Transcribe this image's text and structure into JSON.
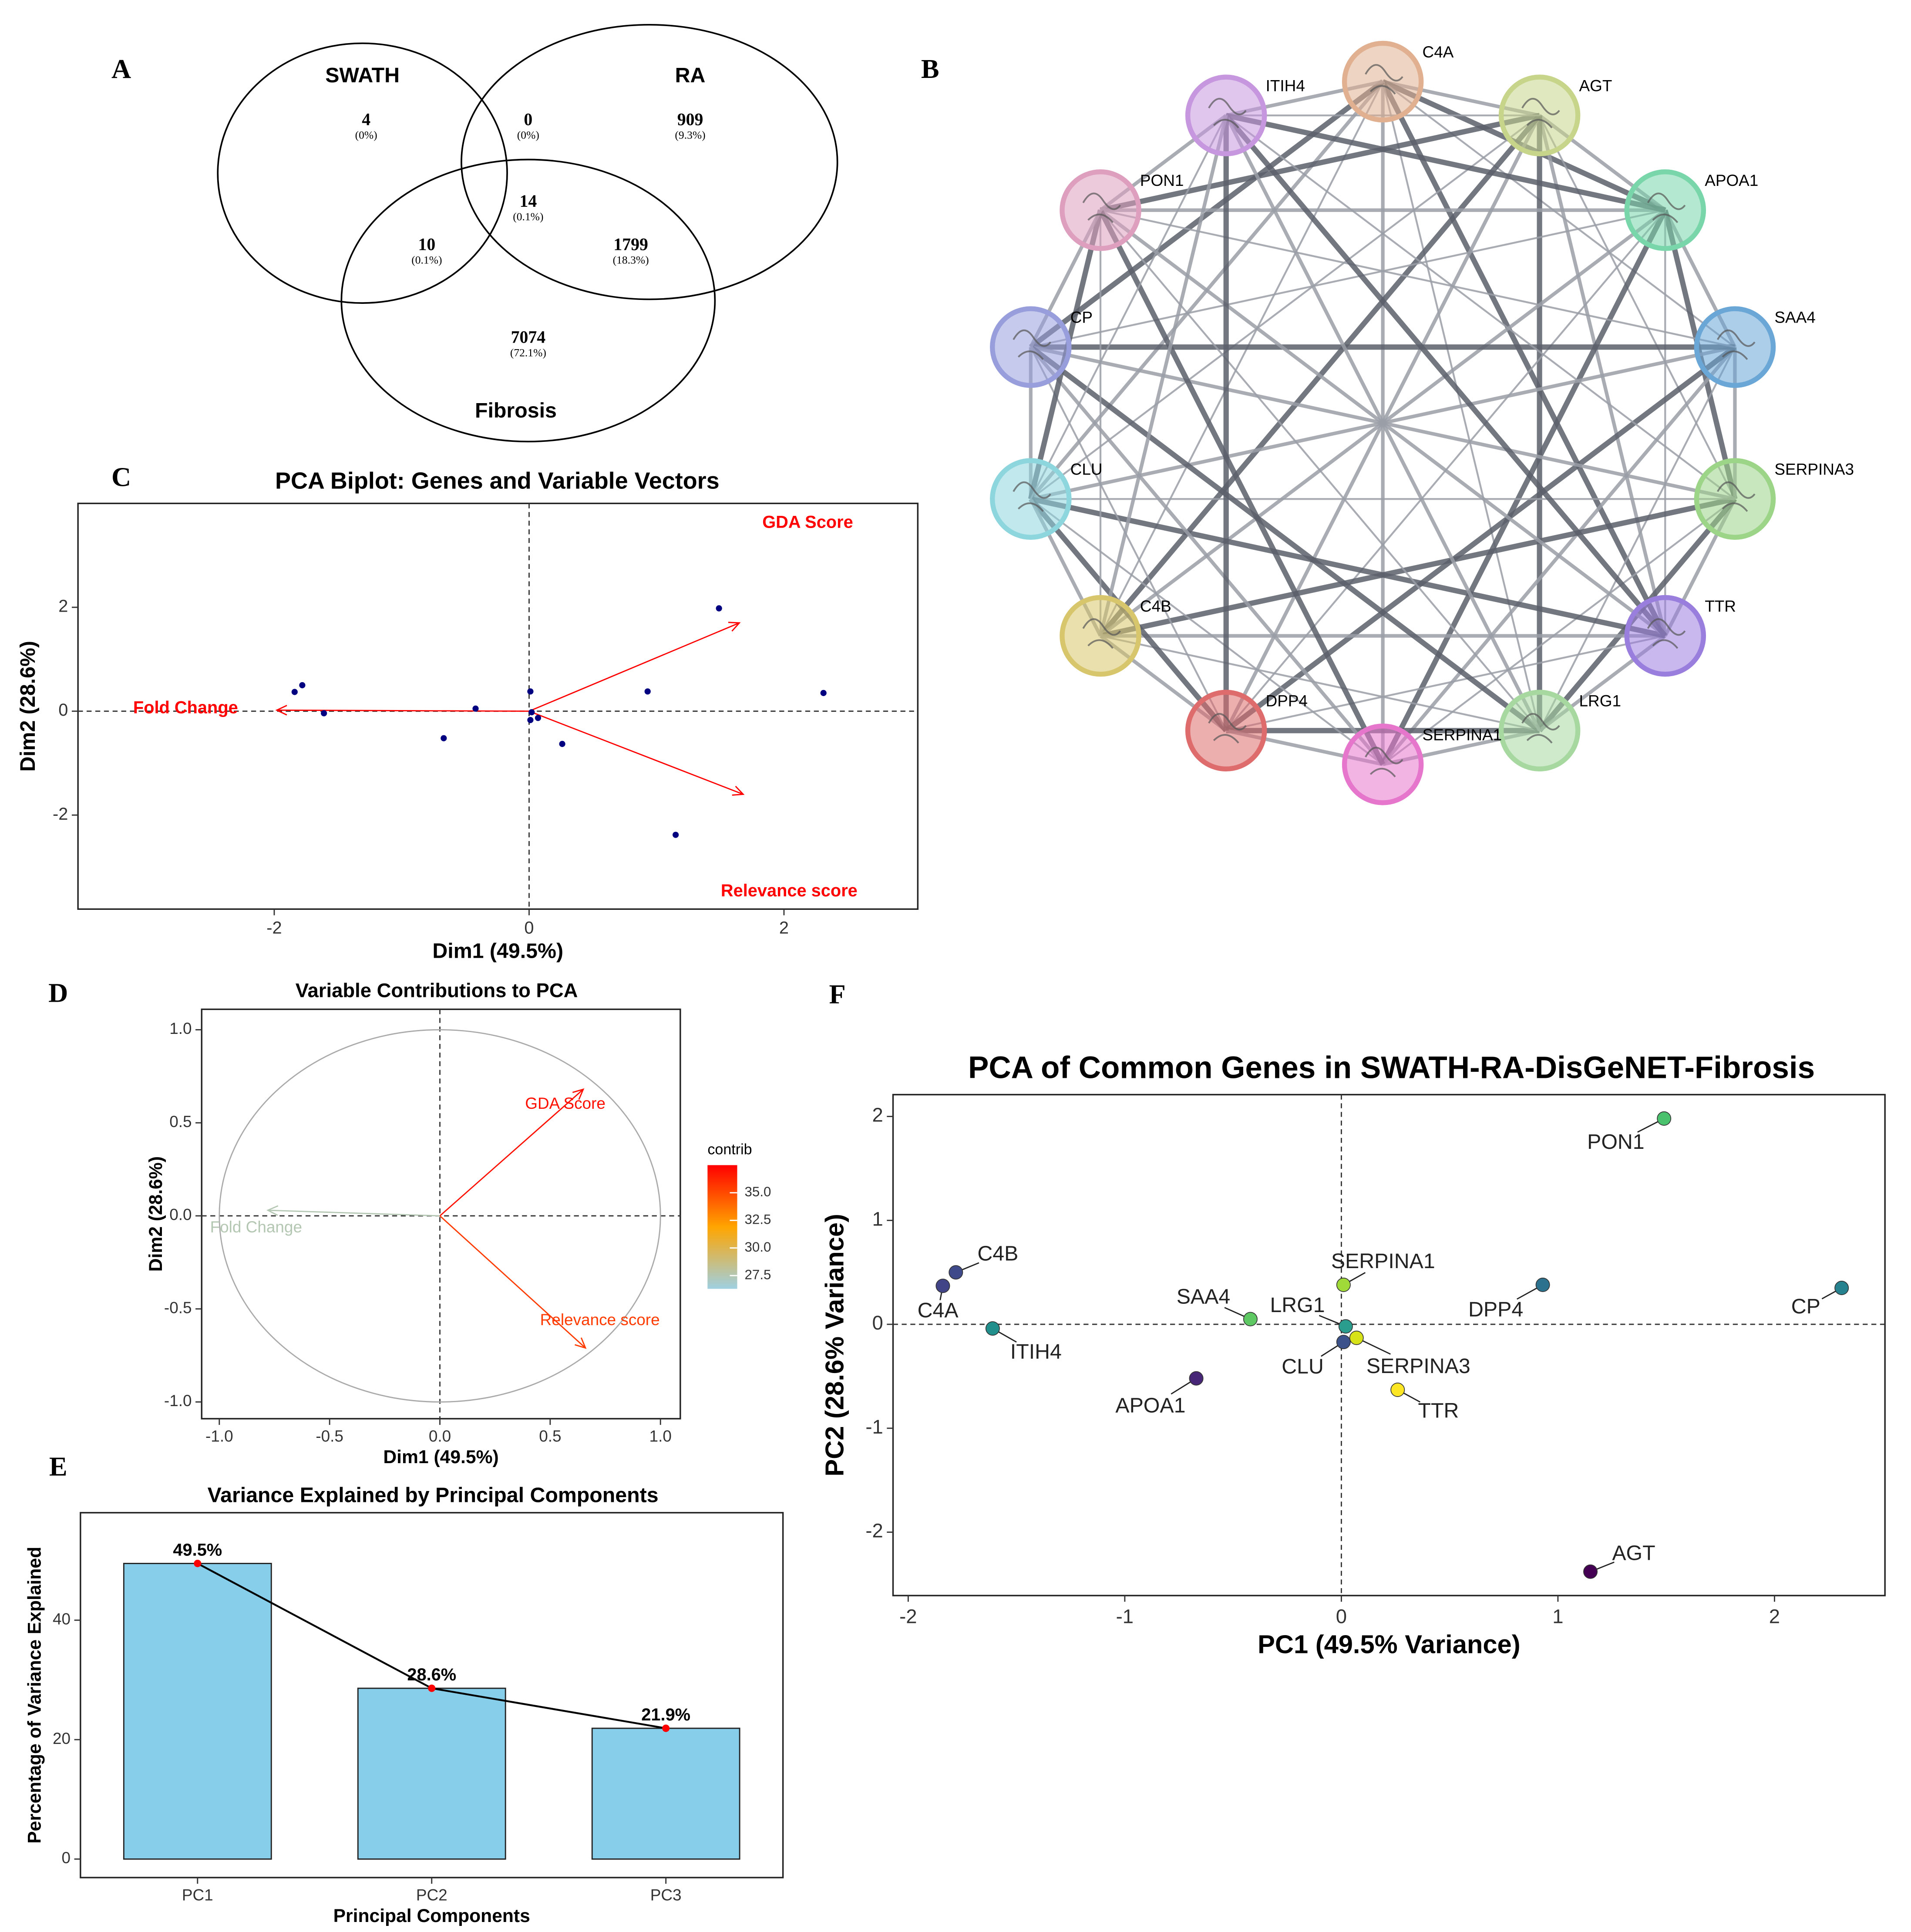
{
  "chart_data": [
    {
      "type": "venn",
      "label": "A",
      "sets": [
        "SWATH",
        "RA",
        "Fibrosis"
      ],
      "values": [
        4,
        0,
        909,
        10,
        14,
        1799,
        7074
      ],
      "percents": [
        0,
        0,
        9.3,
        0.1,
        0.1,
        18.3,
        72.1
      ],
      "percent_labels": [
        "(0%)",
        "(0%)",
        "(9.3%)",
        "(0.1%)",
        "(0.1%)",
        "(18.3%)",
        "(72.1%)"
      ]
    },
    {
      "type": "network",
      "label": "B",
      "nodes": [
        "C4A",
        "AGT",
        "APOA1",
        "SAA4",
        "SERPINA3",
        "TTR",
        "LRG1",
        "SERPINA1",
        "DPP4",
        "C4B",
        "CLU",
        "CP",
        "PON1",
        "ITIH4"
      ],
      "colors": [
        "#e0b090",
        "#c6d58a",
        "#78d6aa",
        "#6aa6d6",
        "#9cd488",
        "#9a7ede",
        "#a6d8a0",
        "#e676cc",
        "#de6c6c",
        "#d8c66c",
        "#8ed6de",
        "#989edc",
        "#de9ebe",
        "#c696de"
      ]
    },
    {
      "type": "scatter",
      "label": "C",
      "title": "PCA Biplot: Genes and Variable Vectors",
      "xlabel": "Dim1 (49.5%)",
      "ylabel": "Dim2 (28.6%)",
      "x": [
        1.49,
        -1.78,
        -1.84,
        -1.61,
        -0.42,
        -0.67,
        0.01,
        0.02,
        0.01,
        0.07,
        0.26,
        0.93,
        2.31,
        1.15
      ],
      "y": [
        1.98,
        0.5,
        0.37,
        -0.04,
        0.05,
        -0.52,
        0.38,
        -0.02,
        -0.17,
        -0.13,
        -0.63,
        0.38,
        0.35,
        -2.38
      ],
      "point_color": "#000080",
      "vectors": [
        {
          "name": "GDA Score",
          "x": 1.65,
          "y": 1.7
        },
        {
          "name": "Fold Change",
          "x": -1.98,
          "y": 0.02
        },
        {
          "name": "Relevance score",
          "x": 1.68,
          "y": -1.6
        }
      ],
      "vector_color": "#ff0000",
      "xlim": [
        -3.54,
        3.05
      ],
      "ylim": [
        -3.81,
        4.0
      ],
      "xticks": [
        -2,
        0,
        2
      ],
      "yticks": [
        -2,
        0,
        2
      ],
      "zero_lines": true
    },
    {
      "type": "circle",
      "label": "D",
      "title": "Variable Contributions to PCA",
      "xlabel": "Dim1 (49.5%)",
      "ylabel": "Dim2 (28.6%)",
      "vectors": [
        {
          "name": "GDA Score",
          "x": 0.65,
          "y": 0.68,
          "contrib": 37
        },
        {
          "name": "Fold Change",
          "x": -0.78,
          "y": 0.03,
          "contrib": 27.5
        },
        {
          "name": "Relevance score",
          "x": 0.66,
          "y": -0.71,
          "contrib": 35.5
        }
      ],
      "colorbar": {
        "title": "contrib",
        "clim": [
          26.3,
          37.5
        ],
        "colors": [
          "#9fd0e2",
          "#ffa500",
          "#ff0000"
        ],
        "ticks": [
          27.5,
          {
            "value": 30,
            "label": "30.0"
          },
          32.5,
          {
            "value": 35,
            "label": "35.0"
          }
        ]
      },
      "xlim": [
        -1.08,
        1.09
      ],
      "ylim": [
        -1.09,
        1.11
      ],
      "xticks": [
        {
          "value": -1,
          "label": "-1.0"
        },
        -0.5,
        {
          "value": 0,
          "label": "0.0"
        },
        0.5,
        {
          "value": 1,
          "label": "1.0"
        }
      ],
      "yticks": [
        {
          "value": -1,
          "label": "-1.0"
        },
        -0.5,
        {
          "value": 0,
          "label": "0.0"
        },
        0.5,
        {
          "value": 1,
          "label": "1.0"
        }
      ],
      "zero_lines": true
    },
    {
      "type": "bar",
      "label": "E",
      "title": "Variance Explained by Principal Components",
      "xlabel": "Principal Components",
      "ylabel": "Percentage of Variance Explained",
      "categories": [
        "PC1",
        "PC2",
        "PC3"
      ],
      "values": [
        49.5,
        28.6,
        21.9
      ],
      "value_labels": [
        "49.5%",
        "28.6%",
        "21.9%"
      ],
      "color": "#87ceeb",
      "line_color": "#000000",
      "point_color": "#ff0000",
      "ylim": [
        -3.1,
        58.0
      ],
      "yticks": [
        0,
        20,
        40
      ]
    },
    {
      "type": "scatter",
      "label": "F",
      "title": "PCA of Common Genes in SWATH-RA-DisGeNET-Fibrosis",
      "xlabel": "PC1 (49.5% Variance)",
      "ylabel": "PC2 (28.6% Variance)",
      "labels": [
        "PON1",
        "C4B",
        "C4A",
        "ITIH4",
        "SAA4",
        "APOA1",
        "SERPINA1",
        "LRG1",
        "CLU",
        "SERPINA3",
        "TTR",
        "DPP4",
        "CP",
        "AGT"
      ],
      "x": [
        1.49,
        -1.78,
        -1.84,
        -1.61,
        -0.42,
        -0.67,
        0.01,
        0.02,
        0.01,
        0.07,
        0.26,
        0.93,
        2.31,
        1.15
      ],
      "y": [
        1.98,
        0.5,
        0.37,
        -0.04,
        0.05,
        -0.52,
        0.38,
        -0.02,
        -0.17,
        -0.13,
        -0.63,
        0.38,
        0.35,
        -2.38
      ],
      "colors": [
        "#4ac16d",
        "#3e4a89",
        "#414487",
        "#21908d",
        "#5ec962",
        "#482677",
        "#a0da39",
        "#2a9d8f",
        "#3b528b",
        "#d8e219",
        "#fde725",
        "#2c728e",
        "#26828e",
        "#440154"
      ],
      "xlim": [
        -2.07,
        2.51
      ],
      "ylim": [
        -2.61,
        2.21
      ],
      "xticks": [
        -2,
        -1,
        0,
        1,
        2
      ],
      "yticks": [
        -2,
        -1,
        0,
        1,
        2
      ],
      "zero_lines": true
    }
  ]
}
